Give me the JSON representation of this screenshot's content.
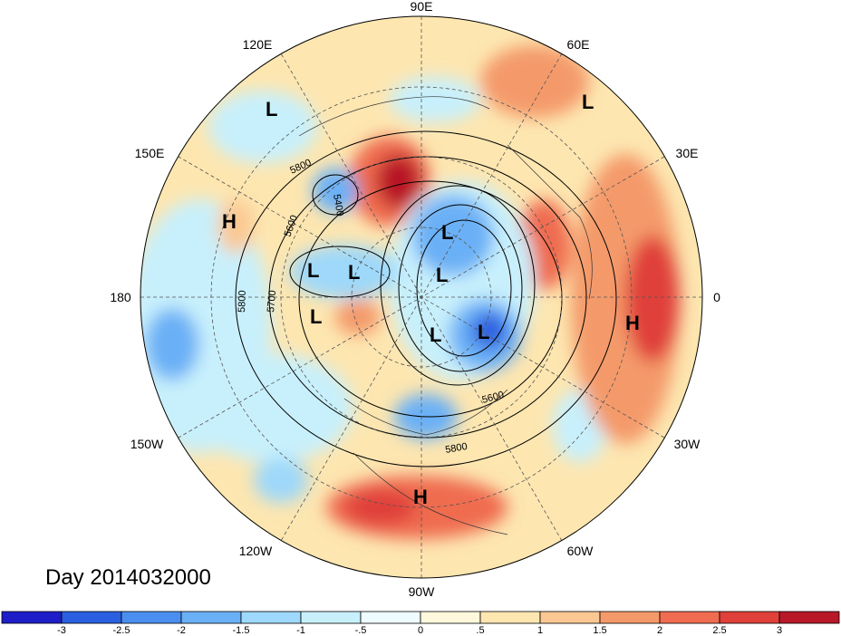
{
  "map": {
    "date_label": "Day 2014032000",
    "longitude_labels": [
      "90E",
      "60E",
      "30E",
      "0",
      "30W",
      "60W",
      "90W",
      "120W",
      "150W",
      "180",
      "150E",
      "120E"
    ],
    "pressure_systems": [
      {
        "type": "L",
        "text": "L"
      },
      {
        "type": "L",
        "text": "L"
      },
      {
        "type": "L",
        "text": "L"
      },
      {
        "type": "L",
        "text": "L"
      },
      {
        "type": "L",
        "text": "L"
      },
      {
        "type": "L",
        "text": "L"
      },
      {
        "type": "L",
        "text": "L"
      },
      {
        "type": "L",
        "text": "L"
      },
      {
        "type": "L",
        "text": "L"
      },
      {
        "type": "H",
        "text": "H"
      },
      {
        "type": "H",
        "text": "H"
      },
      {
        "type": "H",
        "text": "H"
      }
    ],
    "contour_labels": [
      "5800",
      "5600",
      "5700",
      "5400",
      "5800",
      "5600",
      "5800"
    ]
  },
  "colorbar": {
    "colors": [
      "#1e1ec8",
      "#2a5fe0",
      "#4a8ff0",
      "#6ab0f6",
      "#9ed8fa",
      "#c8f0fc",
      "#eefbff",
      "#fff8dc",
      "#fde6b0",
      "#fbc893",
      "#f49a6a",
      "#ef6c50",
      "#e0403a",
      "#b81828"
    ],
    "labels": [
      "-3",
      "-2.5",
      "-2",
      "-1.5",
      "-1",
      "-.5",
      "0",
      ".5",
      "1",
      "1.5",
      "2",
      "2.5",
      "3"
    ]
  }
}
